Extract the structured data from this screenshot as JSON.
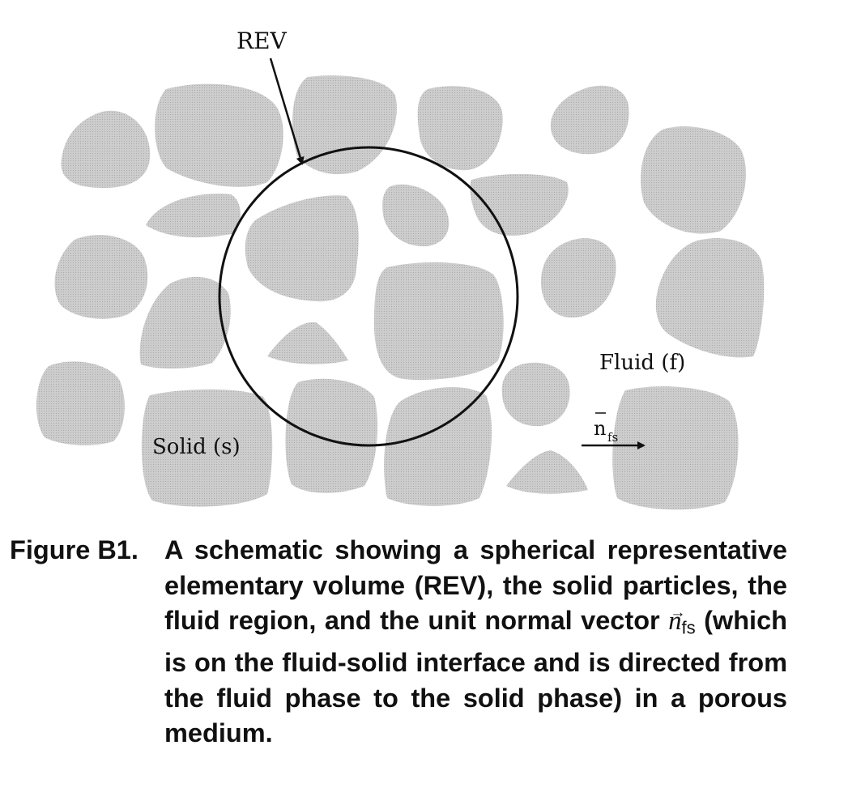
{
  "diagram": {
    "colors": {
      "particle": "#c8c8c8",
      "outline": "#111111",
      "background": "#ffffff"
    },
    "labels": {
      "rev": "REV",
      "fluid": "Fluid (f)",
      "solid": "Solid (s)",
      "normal_base": "n",
      "normal_sub": "fs"
    }
  },
  "caption": {
    "label": "Figure B1.",
    "text_1": "A schematic showing a spherical representative elementary volume (REV), the solid particles, the fluid region, and the unit normal vector",
    "vector_symbol": "n",
    "vector_arrow": "→",
    "vector_sub": "fs",
    "text_2": "(which is on the fluid-solid interface and is directed from the fluid phase to the solid phase) in a porous medium."
  }
}
